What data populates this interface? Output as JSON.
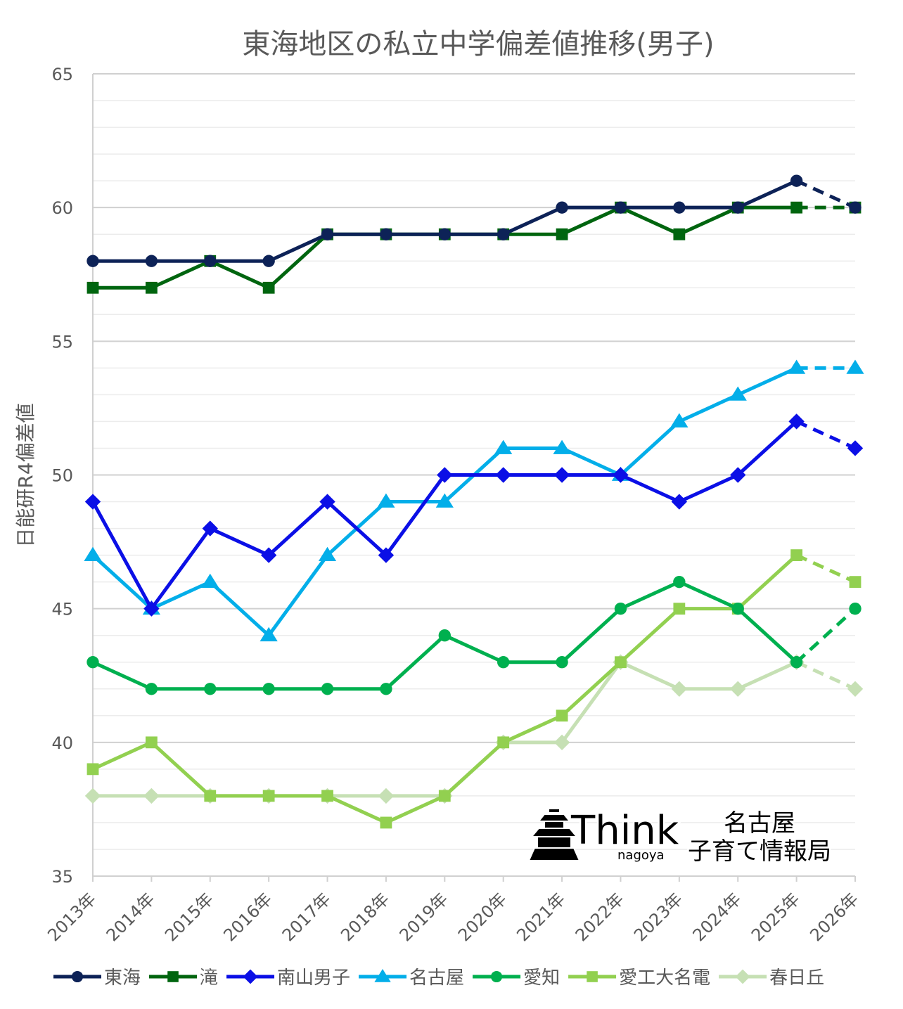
{
  "chart_data": {
    "type": "line",
    "title": "東海地区の私立中学偏差値推移(男子)",
    "ylabel": "日能研R4偏差値",
    "xlabel": "",
    "ylim": [
      35,
      65
    ],
    "yticks": [
      35,
      40,
      45,
      50,
      55,
      60,
      65
    ],
    "minor_grid_step": 1,
    "grid": true,
    "legend_position": "bottom",
    "projection_from": "2025年",
    "categories": [
      "2013年",
      "2014年",
      "2015年",
      "2016年",
      "2017年",
      "2018年",
      "2019年",
      "2020年",
      "2021年",
      "2022年",
      "2023年",
      "2024年",
      "2025年",
      "2026年"
    ],
    "series": [
      {
        "name": "東海",
        "color": "#0d2257",
        "marker": "circle",
        "values": [
          58,
          58,
          58,
          58,
          59,
          59,
          59,
          59,
          60,
          60,
          60,
          60,
          61,
          60
        ]
      },
      {
        "name": "滝",
        "color": "#00650f",
        "marker": "square",
        "values": [
          57,
          57,
          58,
          57,
          59,
          59,
          59,
          59,
          59,
          60,
          59,
          60,
          60,
          60
        ]
      },
      {
        "name": "南山男子",
        "color": "#0b0fe6",
        "marker": "diamond",
        "values": [
          49,
          45,
          48,
          47,
          49,
          47,
          50,
          50,
          50,
          50,
          49,
          50,
          52,
          51
        ]
      },
      {
        "name": "名古屋",
        "color": "#03aee9",
        "marker": "triangle",
        "values": [
          47,
          45,
          46,
          44,
          47,
          49,
          49,
          51,
          51,
          50,
          52,
          53,
          54,
          54
        ]
      },
      {
        "name": "愛知",
        "color": "#00b04f",
        "marker": "circle",
        "values": [
          43,
          42,
          42,
          42,
          42,
          42,
          44,
          43,
          43,
          45,
          46,
          45,
          43,
          45
        ]
      },
      {
        "name": "愛工大名電",
        "color": "#92d050",
        "marker": "square",
        "values": [
          39,
          40,
          38,
          38,
          38,
          37,
          38,
          40,
          41,
          43,
          45,
          45,
          47,
          46
        ]
      },
      {
        "name": "春日丘",
        "color": "#c6e0b4",
        "marker": "diamond",
        "values": [
          38,
          38,
          38,
          38,
          38,
          38,
          38,
          40,
          40,
          43,
          42,
          42,
          43,
          42
        ]
      }
    ]
  },
  "watermark": {
    "brand": "Think",
    "brand_sub": "nagoya",
    "line1": "名古屋",
    "line2": "子育て情報局"
  }
}
